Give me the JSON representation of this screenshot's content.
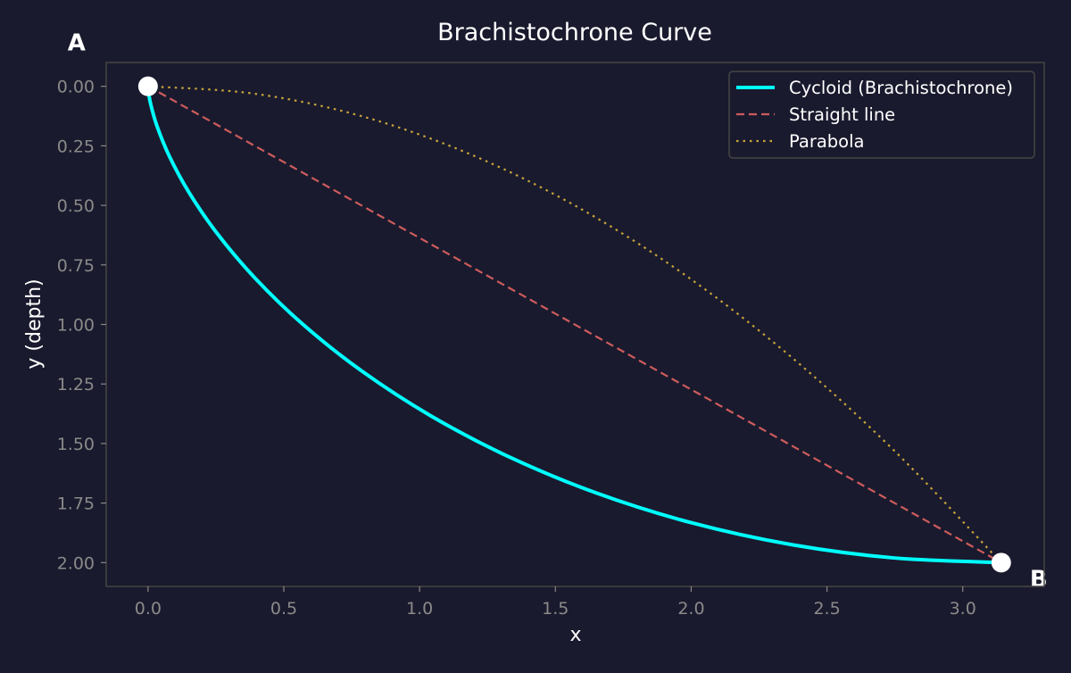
{
  "chart_data": {
    "type": "line",
    "title": "Brachistochrone Curve",
    "xlabel": "x",
    "ylabel": "y (depth)",
    "xlim": [
      -0.154,
      3.3
    ],
    "ylim": [
      2.1,
      -0.1
    ],
    "y_inverted": true,
    "grid": false,
    "legend_position": "top-right",
    "xticks": [
      0.0,
      0.5,
      1.0,
      1.5,
      2.0,
      2.5,
      3.0
    ],
    "xtick_labels": [
      "0.0",
      "0.5",
      "1.0",
      "1.5",
      "2.0",
      "2.5",
      "3.0"
    ],
    "yticks": [
      0,
      0.25,
      0.5,
      0.75,
      1.0,
      1.25,
      1.5,
      1.75,
      2.0
    ],
    "ytick_labels": [
      "0.00",
      "0.25",
      "0.50",
      "0.75",
      "1.00",
      "1.25",
      "1.50",
      "1.75",
      "2.00"
    ],
    "series": [
      {
        "name": "Cycloid (Brachistochrone)",
        "color": "#00ffff",
        "style": "solid",
        "x": [
          0,
          0.00126,
          0.01002,
          0.03348,
          0.07829,
          0.15028,
          0.25422,
          0.39366,
          0.5708,
          0.78636,
          1.03962,
          1.32837,
          1.64908,
          1.99697,
          2.36621,
          2.75015,
          3.14159
        ],
        "y": [
          0,
          0.01921,
          0.07612,
          0.16853,
          0.29289,
          0.44443,
          0.61732,
          0.80491,
          1.0,
          1.19509,
          1.38268,
          1.55557,
          1.70711,
          1.83147,
          1.92388,
          1.98079,
          2.0
        ]
      },
      {
        "name": "Straight line",
        "color": "#cd5c5c",
        "style": "dashed",
        "x": [
          0,
          3.14159
        ],
        "y": [
          0,
          2
        ]
      },
      {
        "name": "Parabola",
        "color": "#c9a53a",
        "style": "dotted",
        "x": [
          0,
          0.3927,
          0.7854,
          1.1781,
          1.5708,
          1.9635,
          2.3562,
          2.7489,
          3.14159
        ],
        "y": [
          0,
          0.03125,
          0.125,
          0.28125,
          0.5,
          0.78125,
          1.125,
          1.53125,
          2.0
        ]
      }
    ],
    "points": [
      {
        "label": "A",
        "x": 0,
        "y": 0
      },
      {
        "label": "B",
        "x": 3.14159,
        "y": 2
      }
    ]
  }
}
